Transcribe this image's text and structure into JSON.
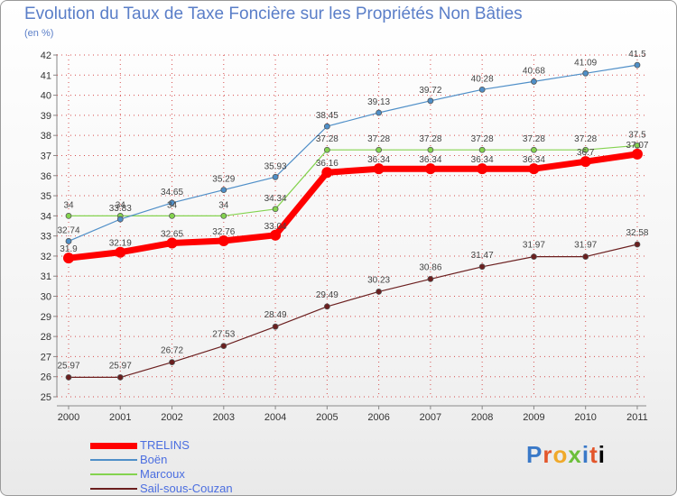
{
  "header": {
    "title": "Evolution du Taux de Taxe Foncière sur les Propriétés Non Bâties",
    "unit": "(en %)"
  },
  "logo": {
    "text": "Proxiti"
  },
  "colors": {
    "TRELINS": "#ff0000",
    "Boën": "#4f8fc8",
    "Marcoux": "#84d34f",
    "Sail-sous-Couzan": "#6b1f1f",
    "grid": "#d65050",
    "title": "#5a7ec8"
  },
  "chart_data": {
    "type": "line",
    "title": "Evolution du Taux de Taxe Foncière sur les Propriétés Non Bâties",
    "ylabel": "(en %)",
    "xlabel": "",
    "ylim": [
      25,
      42
    ],
    "yticks": [
      25,
      26,
      27,
      28,
      29,
      30,
      31,
      32,
      33,
      34,
      35,
      36,
      37,
      38,
      39,
      40,
      41,
      42
    ],
    "x": [
      "2000",
      "2001",
      "2002",
      "2003",
      "2004",
      "2005",
      "2006",
      "2007",
      "2008",
      "2009",
      "2010",
      "2011"
    ],
    "grid": true,
    "legend_position": "bottom-left",
    "series": [
      {
        "name": "Sail-sous-Couzan",
        "values": [
          25.97,
          25.97,
          26.72,
          27.53,
          28.49,
          29.49,
          30.23,
          30.86,
          31.47,
          31.97,
          31.97,
          32.58
        ],
        "labels": [
          "25.97",
          "25.97",
          "26.72",
          "27.53",
          "28.49",
          "29.49",
          "30.23",
          "30.86",
          "31.47",
          "31.97",
          "31.97",
          "32.58"
        ]
      },
      {
        "name": "Marcoux",
        "values": [
          34,
          34,
          34,
          34,
          34.34,
          37.28,
          37.28,
          37.28,
          37.28,
          37.28,
          37.28,
          37.5
        ],
        "labels": [
          "34",
          "34",
          "34",
          "34",
          "34.34",
          "37.28",
          "37.28",
          "37.28",
          "37.28",
          "37.28",
          "37.28",
          "37.5"
        ]
      },
      {
        "name": "Boën",
        "values": [
          32.74,
          33.83,
          34.65,
          35.29,
          35.93,
          38.45,
          39.13,
          39.72,
          40.28,
          40.68,
          41.09,
          41.5
        ],
        "labels": [
          "32.74",
          "33.83",
          "34.65",
          "35.29",
          "35.93",
          "38.45",
          "39.13",
          "39.72",
          "40.28",
          "40.68",
          "41.09",
          "41.5"
        ]
      },
      {
        "name": "TRELINS",
        "values": [
          31.9,
          32.19,
          32.65,
          32.76,
          33.04,
          36.16,
          36.34,
          36.34,
          36.34,
          36.34,
          36.7,
          37.07
        ],
        "labels": [
          "31.9",
          "32.19",
          "32.65",
          "32.76",
          "33.04",
          "36.16",
          "36.34",
          "36.34",
          "36.34",
          "36.34",
          "36.7",
          "37.07"
        ]
      }
    ],
    "legend": [
      "TRELINS",
      "Boën",
      "Marcoux",
      "Sail-sous-Couzan"
    ]
  }
}
